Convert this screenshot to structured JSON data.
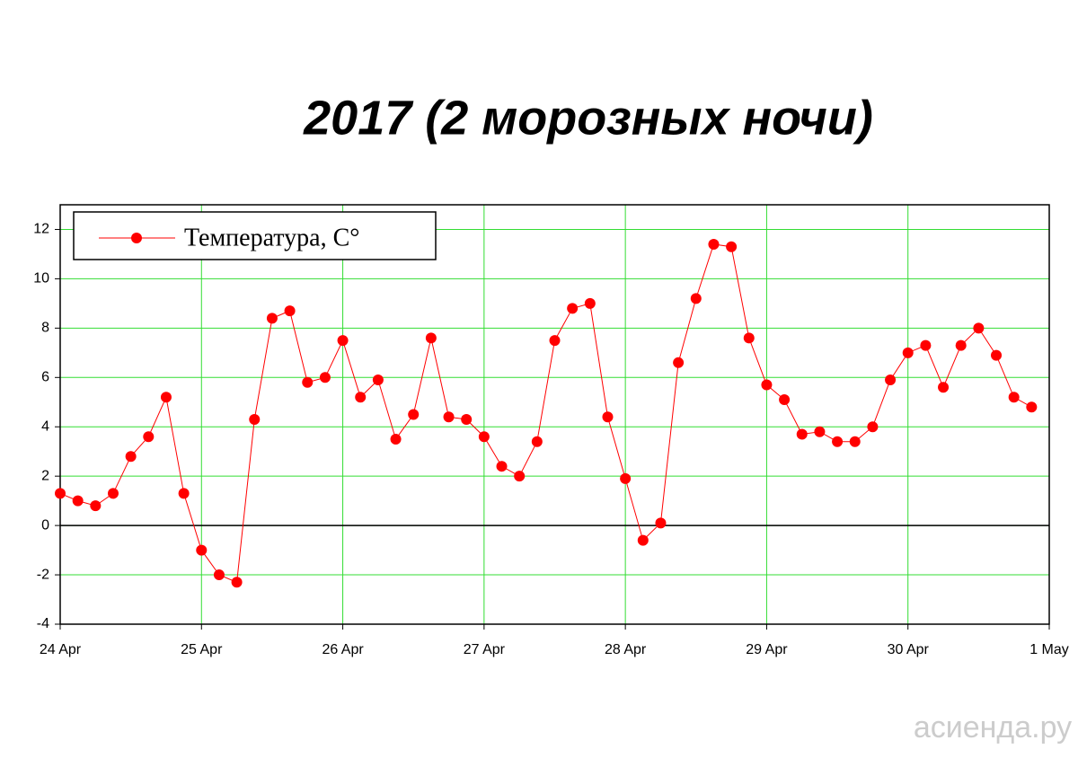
{
  "chart_data": {
    "type": "line",
    "title": "2017 (2 морозных ночи)",
    "x": [
      0,
      0.125,
      0.25,
      0.375,
      0.5,
      0.625,
      0.75,
      0.875,
      1,
      1.125,
      1.25,
      1.375,
      1.5,
      1.625,
      1.75,
      1.875,
      2,
      2.125,
      2.25,
      2.375,
      2.5,
      2.625,
      2.75,
      2.875,
      3,
      3.125,
      3.25,
      3.375,
      3.5,
      3.625,
      3.75,
      3.875,
      4,
      4.125,
      4.25,
      4.375,
      4.5,
      4.625,
      4.75,
      4.875,
      5,
      5.125,
      5.25,
      5.375,
      5.5,
      5.625,
      5.75,
      5.875,
      6,
      6.125,
      6.25,
      6.375,
      6.5,
      6.625,
      6.75,
      6.875
    ],
    "series": [
      {
        "name": "Температура, C°",
        "color": "#ff0000",
        "values": [
          1.3,
          1.0,
          0.8,
          1.3,
          2.8,
          3.6,
          5.2,
          1.3,
          -1.0,
          -2.0,
          -2.3,
          4.3,
          8.4,
          8.7,
          5.8,
          6.0,
          7.5,
          5.2,
          5.9,
          3.5,
          4.5,
          7.6,
          4.4,
          4.3,
          3.6,
          2.4,
          2.0,
          3.4,
          7.5,
          8.8,
          9.0,
          4.4,
          1.9,
          -0.6,
          0.1,
          6.6,
          9.2,
          11.4,
          11.3,
          7.6,
          5.7,
          5.1,
          3.7,
          3.8,
          3.4,
          3.4,
          4.0,
          5.9,
          7.0,
          7.3,
          5.6,
          7.3,
          8.0,
          6.9,
          5.2,
          4.8
        ]
      }
    ],
    "xlim": [
      0,
      7
    ],
    "xticks": [
      {
        "value": 0,
        "label": "24 Apr"
      },
      {
        "value": 1,
        "label": "25 Apr"
      },
      {
        "value": 2,
        "label": "26 Apr"
      },
      {
        "value": 3,
        "label": "27 Apr"
      },
      {
        "value": 4,
        "label": "28 Apr"
      },
      {
        "value": 5,
        "label": "29 Apr"
      },
      {
        "value": 6,
        "label": "30 Apr"
      },
      {
        "value": 7,
        "label": "1 May"
      }
    ],
    "ylim": [
      -4,
      13
    ],
    "yticks": [
      -4,
      -2,
      0,
      2,
      4,
      6,
      8,
      10,
      12
    ],
    "grid": true,
    "grid_color": "#33dd33",
    "zero_line": true,
    "legend": "upper left",
    "watermark": "асиенда.ру"
  }
}
